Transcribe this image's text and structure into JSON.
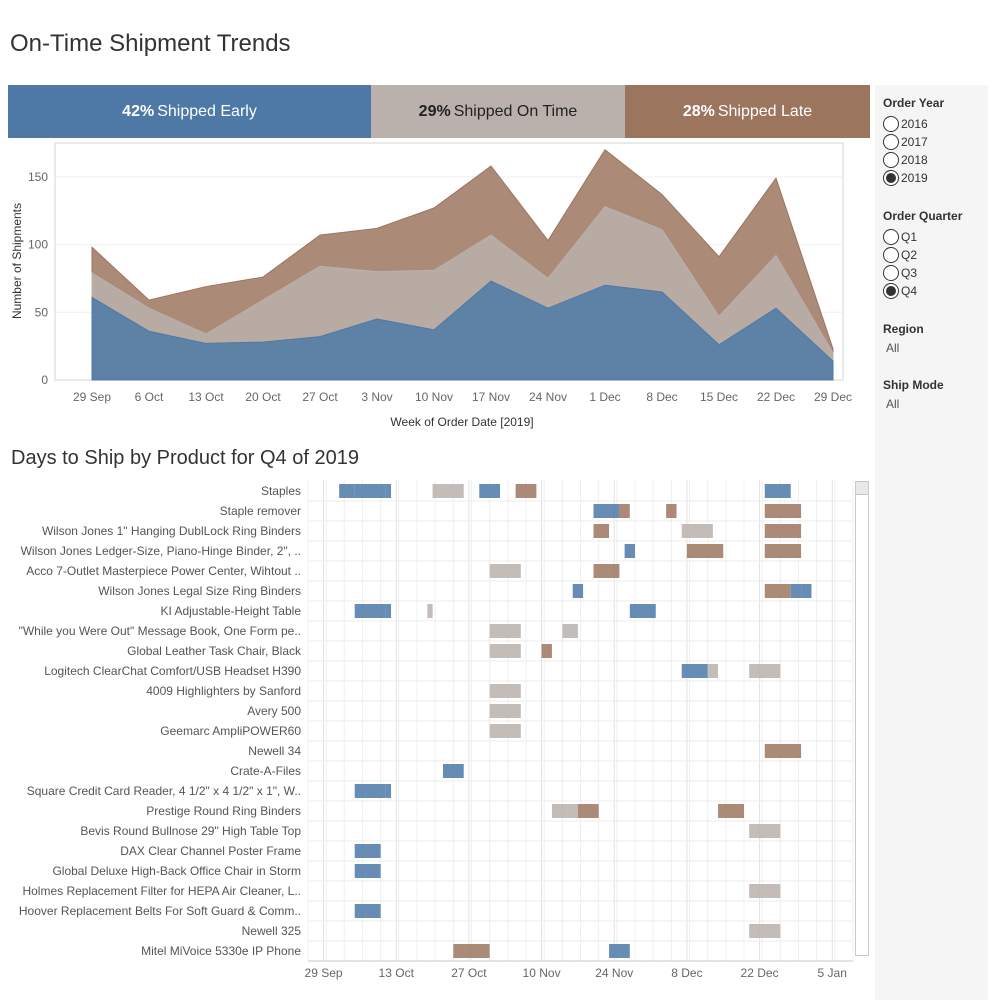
{
  "title": "On-Time Shipment Trends",
  "kpis": [
    {
      "pct": "42%",
      "label": "Shipped Early",
      "color": "#4e79a7"
    },
    {
      "pct": "29%",
      "label": "Shipped On Time",
      "color": "#bab0ac"
    },
    {
      "pct": "28%",
      "label": "Shipped Late",
      "color": "#9c755f"
    }
  ],
  "filters": {
    "order_year": {
      "title": "Order Year",
      "options": [
        "2016",
        "2017",
        "2018",
        "2019"
      ],
      "selected": "2019"
    },
    "order_quarter": {
      "title": "Order Quarter",
      "options": [
        "Q1",
        "Q2",
        "Q3",
        "Q4"
      ],
      "selected": "Q4"
    },
    "region": {
      "title": "Region",
      "value": "All"
    },
    "ship_mode": {
      "title": "Ship Mode",
      "value": "All"
    }
  },
  "section2_title": "Days to Ship by Product for Q4 of 2019",
  "chart_data": [
    {
      "type": "area",
      "stacked": true,
      "xlabel": "Week of Order Date [2019]",
      "ylabel": "Number of Shipments",
      "ylim": [
        0,
        175
      ],
      "yticks": [
        0,
        50,
        100,
        150
      ],
      "grid": true,
      "categories": [
        "29 Sep",
        "6 Oct",
        "13 Oct",
        "20 Oct",
        "27 Oct",
        "3 Nov",
        "10 Nov",
        "17 Nov",
        "24 Nov",
        "1 Dec",
        "8 Dec",
        "15 Dec",
        "22 Dec",
        "29 Dec"
      ],
      "series": [
        {
          "name": "Shipped Early",
          "color": "#4e79a7",
          "values": [
            61,
            36,
            27,
            28,
            32,
            45,
            37,
            73,
            53,
            70,
            65,
            26,
            53,
            14
          ]
        },
        {
          "name": "Shipped On Time",
          "color": "#bab0ac",
          "values": [
            18,
            17,
            7,
            31,
            52,
            35,
            44,
            34,
            22,
            58,
            46,
            21,
            39,
            6
          ]
        },
        {
          "name": "Shipped Late",
          "color": "#9c755f",
          "values": [
            19,
            6,
            35,
            17,
            23,
            32,
            46,
            51,
            28,
            42,
            26,
            44,
            57,
            3
          ]
        }
      ]
    },
    {
      "type": "gantt",
      "xlabel": "",
      "xticks": [
        "29 Sep",
        "13 Oct",
        "27 Oct",
        "10 Nov",
        "24 Nov",
        "8 Dec",
        "22 Dec",
        "5 Jan"
      ],
      "xlim": [
        "2019-09-26",
        "2020-01-09"
      ],
      "grid": true,
      "products": [
        {
          "name": "Staples",
          "bars": [
            {
              "start": "2019-10-02",
              "end": "2019-10-05",
              "status": "early"
            },
            {
              "start": "2019-10-05",
              "end": "2019-10-11",
              "status": "early"
            },
            {
              "start": "2019-10-11",
              "end": "2019-10-12",
              "status": "early"
            },
            {
              "start": "2019-10-20",
              "end": "2019-10-26",
              "status": "ontime"
            },
            {
              "start": "2019-10-29",
              "end": "2019-11-02",
              "status": "early"
            },
            {
              "start": "2019-11-05",
              "end": "2019-11-09",
              "status": "late"
            },
            {
              "start": "2019-12-23",
              "end": "2019-12-28",
              "status": "early"
            }
          ]
        },
        {
          "name": "Staple remover",
          "bars": [
            {
              "start": "2019-11-20",
              "end": "2019-11-25",
              "status": "early"
            },
            {
              "start": "2019-11-25",
              "end": "2019-11-27",
              "status": "late"
            },
            {
              "start": "2019-12-04",
              "end": "2019-12-06",
              "status": "late"
            },
            {
              "start": "2019-12-23",
              "end": "2019-12-30",
              "status": "late"
            }
          ]
        },
        {
          "name": "Wilson Jones 1\" Hanging DublLock Ring Binders",
          "bars": [
            {
              "start": "2019-11-20",
              "end": "2019-11-23",
              "status": "late"
            },
            {
              "start": "2019-12-07",
              "end": "2019-12-13",
              "status": "ontime"
            },
            {
              "start": "2019-12-23",
              "end": "2019-12-30",
              "status": "late"
            }
          ]
        },
        {
          "name": "Wilson Jones Ledger-Size, Piano-Hinge Binder, 2\", ..",
          "bars": [
            {
              "start": "2019-11-26",
              "end": "2019-11-28",
              "status": "early"
            },
            {
              "start": "2019-12-08",
              "end": "2019-12-15",
              "status": "late"
            },
            {
              "start": "2019-12-23",
              "end": "2019-12-30",
              "status": "late"
            }
          ]
        },
        {
          "name": "Acco 7-Outlet Masterpiece Power Center, Wihtout ..",
          "bars": [
            {
              "start": "2019-10-31",
              "end": "2019-11-06",
              "status": "ontime"
            },
            {
              "start": "2019-11-20",
              "end": "2019-11-25",
              "status": "late"
            }
          ]
        },
        {
          "name": "Wilson Jones Legal Size Ring Binders",
          "bars": [
            {
              "start": "2019-11-16",
              "end": "2019-11-18",
              "status": "early"
            },
            {
              "start": "2019-12-23",
              "end": "2019-12-28",
              "status": "late"
            },
            {
              "start": "2019-12-28",
              "end": "2019-12-30",
              "status": "early"
            },
            {
              "start": "2019-12-30",
              "end": "2020-01-01",
              "status": "early"
            }
          ]
        },
        {
          "name": "KI Adjustable-Height Table",
          "bars": [
            {
              "start": "2019-10-05",
              "end": "2019-10-11",
              "status": "early"
            },
            {
              "start": "2019-10-11",
              "end": "2019-10-12",
              "status": "early"
            },
            {
              "start": "2019-10-19",
              "end": "2019-10-20",
              "status": "ontime"
            },
            {
              "start": "2019-11-27",
              "end": "2019-12-02",
              "status": "early"
            }
          ]
        },
        {
          "name": "\"While you Were Out\" Message Book, One Form pe..",
          "bars": [
            {
              "start": "2019-10-31",
              "end": "2019-11-06",
              "status": "ontime"
            },
            {
              "start": "2019-11-14",
              "end": "2019-11-17",
              "status": "ontime"
            }
          ]
        },
        {
          "name": "Global Leather Task Chair, Black",
          "bars": [
            {
              "start": "2019-10-31",
              "end": "2019-11-06",
              "status": "ontime"
            },
            {
              "start": "2019-11-10",
              "end": "2019-11-12",
              "status": "late"
            }
          ]
        },
        {
          "name": "Logitech ClearChat Comfort/USB Headset H390",
          "bars": [
            {
              "start": "2019-12-07",
              "end": "2019-12-12",
              "status": "early"
            },
            {
              "start": "2019-12-12",
              "end": "2019-12-14",
              "status": "ontime"
            },
            {
              "start": "2019-12-20",
              "end": "2019-12-26",
              "status": "ontime"
            }
          ]
        },
        {
          "name": "4009 Highlighters by Sanford",
          "bars": [
            {
              "start": "2019-10-31",
              "end": "2019-11-06",
              "status": "ontime"
            }
          ]
        },
        {
          "name": "Avery 500",
          "bars": [
            {
              "start": "2019-10-31",
              "end": "2019-11-06",
              "status": "ontime"
            }
          ]
        },
        {
          "name": "Geemarc AmpliPOWER60",
          "bars": [
            {
              "start": "2019-10-31",
              "end": "2019-11-06",
              "status": "ontime"
            }
          ]
        },
        {
          "name": "Newell 34",
          "bars": [
            {
              "start": "2019-12-23",
              "end": "2019-12-30",
              "status": "late"
            }
          ]
        },
        {
          "name": "Crate-A-Files",
          "bars": [
            {
              "start": "2019-10-22",
              "end": "2019-10-26",
              "status": "early"
            }
          ]
        },
        {
          "name": "Square Credit Card Reader, 4 1/2\" x 4 1/2\" x 1\", W..",
          "bars": [
            {
              "start": "2019-10-05",
              "end": "2019-10-11",
              "status": "early"
            },
            {
              "start": "2019-10-11",
              "end": "2019-10-12",
              "status": "early"
            }
          ]
        },
        {
          "name": "Prestige Round Ring Binders",
          "bars": [
            {
              "start": "2019-11-12",
              "end": "2019-11-15",
              "status": "ontime"
            },
            {
              "start": "2019-11-15",
              "end": "2019-11-17",
              "status": "ontime"
            },
            {
              "start": "2019-11-17",
              "end": "2019-11-21",
              "status": "late"
            },
            {
              "start": "2019-12-14",
              "end": "2019-12-19",
              "status": "late"
            }
          ]
        },
        {
          "name": "Bevis Round Bullnose 29\" High Table Top",
          "bars": [
            {
              "start": "2019-12-20",
              "end": "2019-12-26",
              "status": "ontime"
            }
          ]
        },
        {
          "name": "DAX Clear Channel Poster Frame",
          "bars": [
            {
              "start": "2019-10-05",
              "end": "2019-10-10",
              "status": "early"
            }
          ]
        },
        {
          "name": "Global Deluxe High-Back Office Chair in Storm",
          "bars": [
            {
              "start": "2019-10-05",
              "end": "2019-10-10",
              "status": "early"
            }
          ]
        },
        {
          "name": "Holmes Replacement Filter for HEPA Air Cleaner, L..",
          "bars": [
            {
              "start": "2019-12-20",
              "end": "2019-12-26",
              "status": "ontime"
            }
          ]
        },
        {
          "name": "Hoover Replacement Belts For Soft Guard & Comm..",
          "bars": [
            {
              "start": "2019-10-05",
              "end": "2019-10-10",
              "status": "early"
            }
          ]
        },
        {
          "name": "Newell 325",
          "bars": [
            {
              "start": "2019-12-20",
              "end": "2019-12-26",
              "status": "ontime"
            }
          ]
        },
        {
          "name": "Mitel MiVoice 5330e IP Phone",
          "bars": [
            {
              "start": "2019-10-24",
              "end": "2019-10-31",
              "status": "late"
            },
            {
              "start": "2019-11-23",
              "end": "2019-11-27",
              "status": "early"
            }
          ]
        }
      ],
      "status_colors": {
        "early": "#4e79a7",
        "ontime": "#bab0ac",
        "late": "#9c755f"
      }
    }
  ]
}
